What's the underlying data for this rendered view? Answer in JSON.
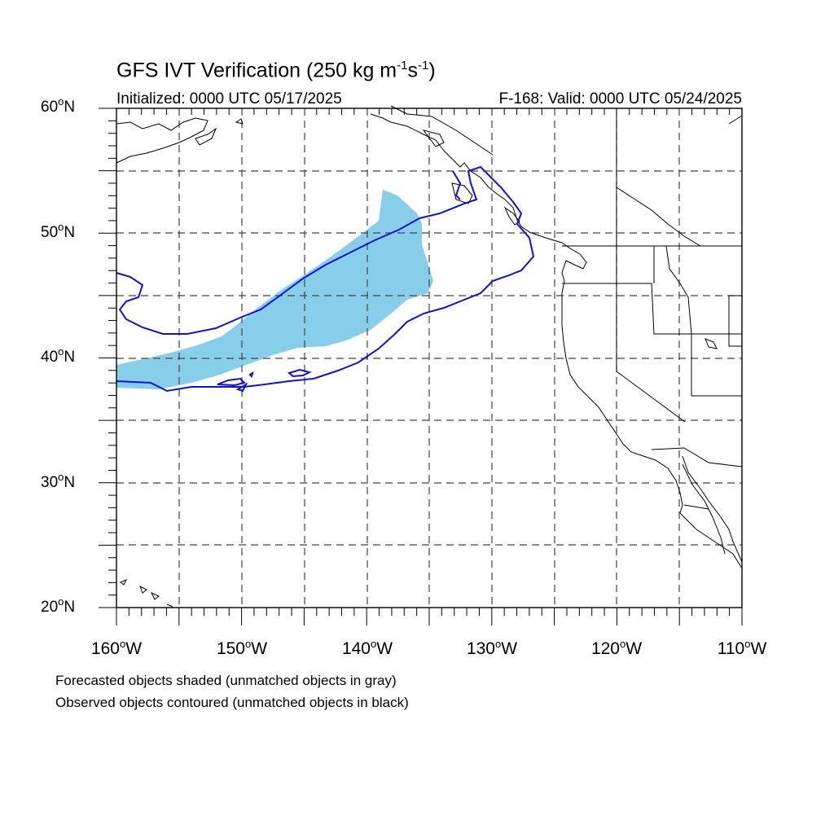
{
  "title": {
    "text": "GFS IVT Verification (250 kg m",
    "exp1": "-1",
    "mid": "s",
    "exp2": "-1",
    "close": ")"
  },
  "subtitle_left": "Initialized: 0000 UTC 05/17/2025",
  "subtitle_right": "F-168: Valid: 0000 UTC 05/24/2025",
  "lat_labels": [
    {
      "value": "60",
      "suffix": "N"
    },
    {
      "value": "50",
      "suffix": "N"
    },
    {
      "value": "40",
      "suffix": "N"
    },
    {
      "value": "30",
      "suffix": "N"
    },
    {
      "value": "20",
      "suffix": "N"
    }
  ],
  "lon_labels": [
    {
      "value": "160",
      "suffix": "W"
    },
    {
      "value": "150",
      "suffix": "W"
    },
    {
      "value": "140",
      "suffix": "W"
    },
    {
      "value": "130",
      "suffix": "W"
    },
    {
      "value": "120",
      "suffix": "W"
    },
    {
      "value": "110",
      "suffix": "W"
    }
  ],
  "notes": [
    "Forecasted objects shaded (unmatched objects in gray)",
    "Observed objects contoured (unmatched objects in black)"
  ],
  "map_extent": {
    "lon_min": -160,
    "lon_max": -110,
    "lat_min": 20,
    "lat_max": 60
  },
  "colors": {
    "forecast_fill": "#87ceeb",
    "observed_contour": "#1010e0",
    "coastline": "#000000",
    "grid": "#444444"
  }
}
